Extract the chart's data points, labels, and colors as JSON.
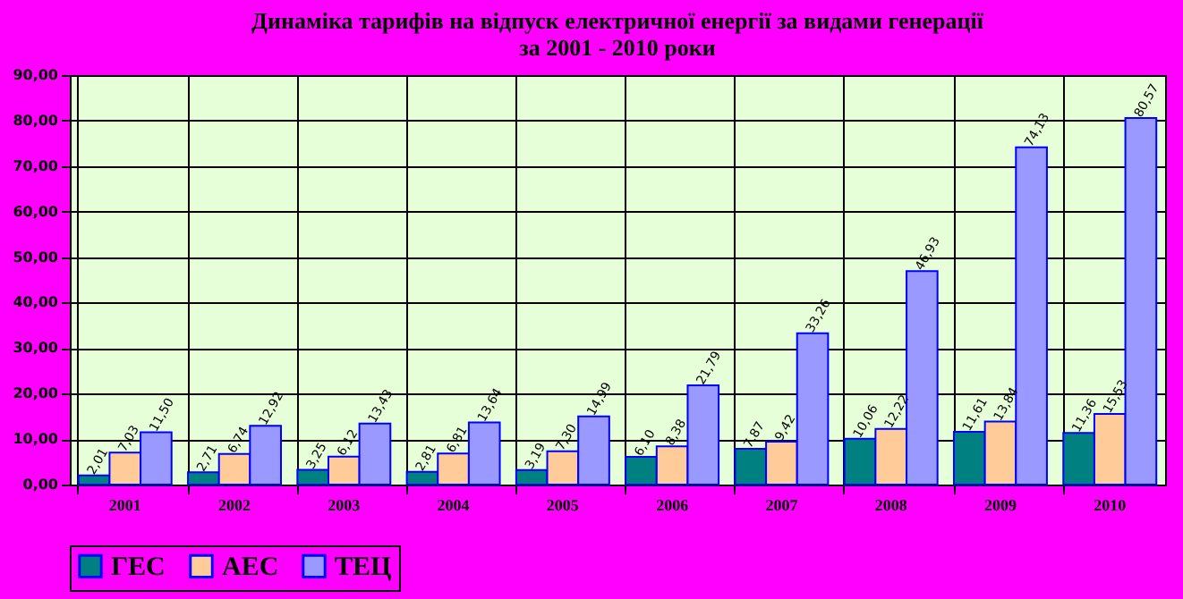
{
  "chart_data": {
    "type": "bar",
    "title": [
      "Динаміка тарифів на відпуск електричної енергії за видами генерації",
      "за 2001 - 2010 роки"
    ],
    "categories": [
      "2001",
      "2002",
      "2003",
      "2004",
      "2005",
      "2006",
      "2007",
      "2008",
      "2009",
      "2010"
    ],
    "series": [
      {
        "name": "ГЕС",
        "color": "#008080",
        "values": [
          2.01,
          2.71,
          3.25,
          2.81,
          3.19,
          6.1,
          7.87,
          10.06,
          11.61,
          11.36
        ],
        "value_labels": [
          "2,01",
          "2,71",
          "3,25",
          "2,81",
          "3,19",
          "6,10",
          "7,87",
          "10,06",
          "11,61",
          "11,36"
        ]
      },
      {
        "name": "АЕС",
        "color": "#ffcc99",
        "values": [
          7.03,
          6.74,
          6.12,
          6.81,
          7.3,
          8.38,
          9.42,
          12.22,
          13.84,
          15.53
        ],
        "value_labels": [
          "7,03",
          "6,74",
          "6,12",
          "6,81",
          "7,30",
          "8,38",
          "9,42",
          "12,22",
          "13,84",
          "15,53"
        ]
      },
      {
        "name": "ТЕЦ",
        "color": "#9999ff",
        "values": [
          11.5,
          12.92,
          13.43,
          13.64,
          14.99,
          21.79,
          33.26,
          46.93,
          74.13,
          80.57
        ],
        "value_labels": [
          "11,50",
          "12,92",
          "13,43",
          "13,64",
          "14,99",
          "21,79",
          "33,26",
          "46,93",
          "74,13",
          "80,57"
        ]
      }
    ],
    "ylim": [
      0,
      90
    ],
    "yticks": [
      {
        "value": 0,
        "label": "0,00"
      },
      {
        "value": 10,
        "label": "10,00"
      },
      {
        "value": 20,
        "label": "20,00"
      },
      {
        "value": 30,
        "label": "30,00"
      },
      {
        "value": 40,
        "label": "40,00"
      },
      {
        "value": 50,
        "label": "50,00"
      },
      {
        "value": 60,
        "label": "60,00"
      },
      {
        "value": 70,
        "label": "70,00"
      },
      {
        "value": 80,
        "label": "80,00"
      },
      {
        "value": 90,
        "label": "90,00"
      }
    ],
    "grid": true,
    "legend": "bottom"
  }
}
